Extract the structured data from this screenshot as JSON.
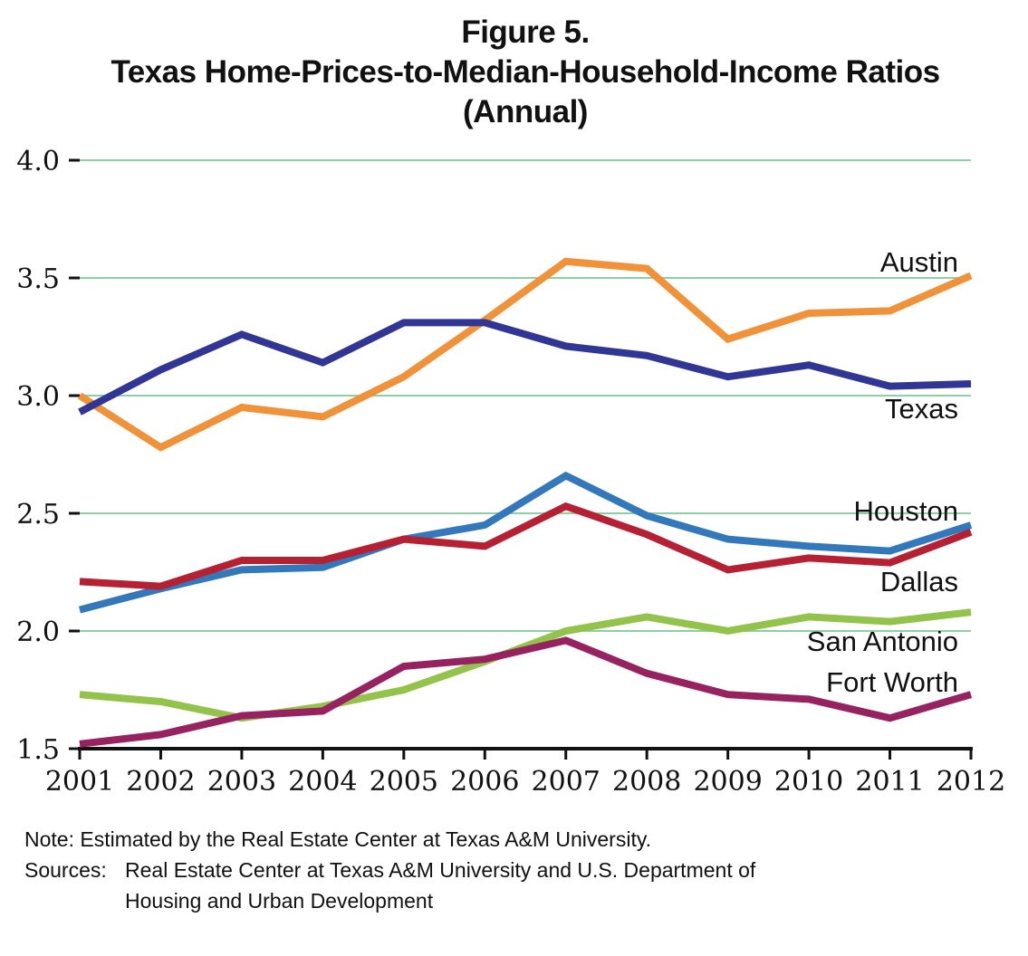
{
  "title": {
    "line1": "Figure 5.",
    "line2": "Texas Home-Prices-to-Median-Household-Income Ratios",
    "line3": "(Annual)"
  },
  "chart_data": {
    "type": "line",
    "title": "Figure 5. Texas Home-Prices-to-Median-Household-Income Ratios (Annual)",
    "xlabel": "",
    "ylabel": "",
    "x": [
      "2001",
      "2002",
      "2003",
      "2004",
      "2005",
      "2006",
      "2007",
      "2008",
      "2009",
      "2010",
      "2011",
      "2012"
    ],
    "ylim": [
      1.5,
      4.0
    ],
    "yticks": [
      "1.5",
      "2.0",
      "2.5",
      "3.0",
      "3.5",
      "4.0"
    ],
    "grid": true,
    "legend": "inline labels at right end of lines",
    "series": [
      {
        "name": "Austin",
        "color": "#F0923A",
        "values": [
          3.0,
          2.78,
          2.95,
          2.91,
          3.08,
          3.32,
          3.57,
          3.54,
          3.24,
          3.35,
          3.36,
          3.51
        ]
      },
      {
        "name": "Texas",
        "color": "#313695",
        "values": [
          2.93,
          3.11,
          3.26,
          3.14,
          3.31,
          3.31,
          3.21,
          3.17,
          3.08,
          3.13,
          3.04,
          3.05
        ]
      },
      {
        "name": "Houston",
        "color": "#3478BC",
        "values": [
          2.09,
          2.18,
          2.26,
          2.27,
          2.39,
          2.45,
          2.66,
          2.49,
          2.39,
          2.36,
          2.34,
          2.45
        ]
      },
      {
        "name": "Dallas",
        "color": "#B52033",
        "values": [
          2.21,
          2.19,
          2.3,
          2.3,
          2.39,
          2.36,
          2.53,
          2.41,
          2.26,
          2.31,
          2.29,
          2.42
        ]
      },
      {
        "name": "San Antonio",
        "color": "#93C34B",
        "values": [
          1.73,
          1.7,
          1.63,
          1.68,
          1.75,
          1.87,
          2.0,
          2.06,
          2.0,
          2.06,
          2.04,
          2.08
        ]
      },
      {
        "name": "Fort Worth",
        "color": "#962260",
        "values": [
          1.52,
          1.56,
          1.64,
          1.66,
          1.85,
          1.88,
          1.96,
          1.82,
          1.73,
          1.71,
          1.63,
          1.73
        ]
      }
    ],
    "gridline_color": "#8FCFA6"
  },
  "footnote": {
    "note_key": "Note:",
    "note_text": "Estimated by the Real Estate Center at Texas A&M University.",
    "sources_key": "Sources:",
    "sources_line1": "Real Estate Center at Texas A&M University and U.S. Department of",
    "sources_line2": "Housing and Urban Development"
  }
}
